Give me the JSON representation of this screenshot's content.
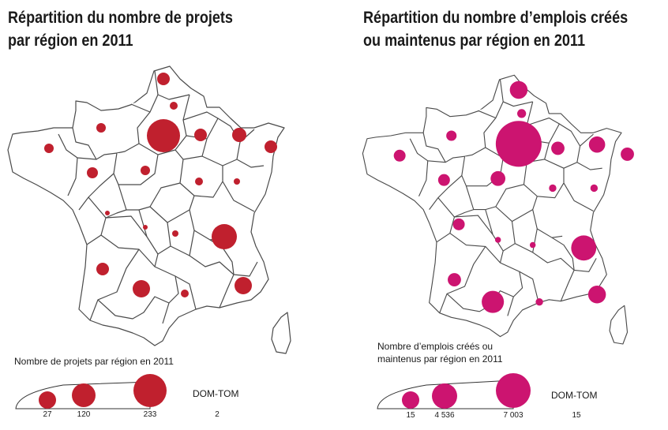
{
  "colors": {
    "projects": "#c0202e",
    "jobs": "#cc1470",
    "border": "#4a4a4a"
  },
  "maps": [
    {
      "id": "projects",
      "title_line1": "Répartition du nombre de projets",
      "title_line2": "par région en 2011",
      "legend_title_lines": [
        "Nombre de projets par région en 2011"
      ],
      "legend_values": [
        "27",
        "120",
        "233"
      ],
      "dom_tom_label": "DOM-TOM",
      "dom_tom_value": "2"
    },
    {
      "id": "jobs",
      "title_line1": "Répartition du nombre d’emplois créés",
      "title_line2": "ou maintenus par région en 2011",
      "legend_title_lines": [
        "Nombre d’emplois créés ou",
        "maintenus par région en 2011"
      ],
      "legend_values": [
        "15",
        "4 536",
        "7 003"
      ],
      "dom_tom_label": "DOM-TOM",
      "dom_tom_value": "15"
    }
  ]
}
